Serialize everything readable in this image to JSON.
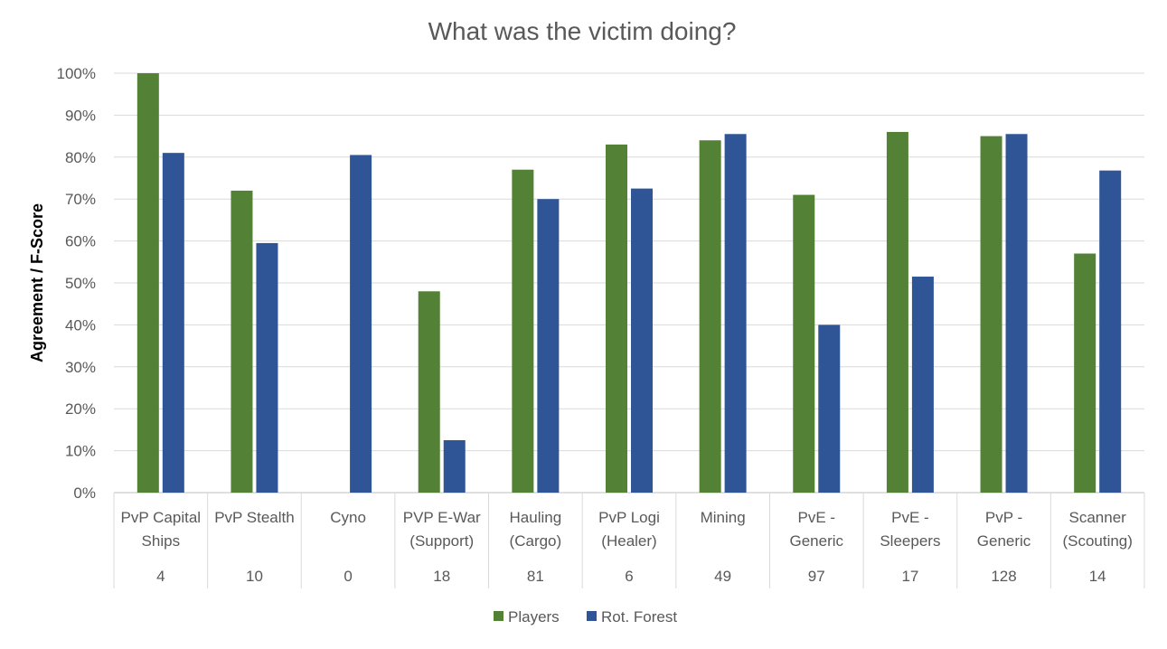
{
  "chart_data": {
    "type": "bar",
    "title": "What was the victim doing?",
    "xlabel": "",
    "ylabel": "Agreement / F-Score",
    "ylim": [
      0,
      1
    ],
    "y_tick_labels": [
      "0%",
      "10%",
      "20%",
      "30%",
      "40%",
      "50%",
      "60%",
      "70%",
      "80%",
      "90%",
      "100%"
    ],
    "grid": true,
    "legend_position": "bottom",
    "categories": [
      [
        "PvP Capital",
        "Ships"
      ],
      [
        "PvP Stealth"
      ],
      [
        "Cyno"
      ],
      [
        "PVP E-War",
        "(Support)"
      ],
      [
        "Hauling",
        "(Cargo)"
      ],
      [
        "PvP Logi",
        "(Healer)"
      ],
      [
        "Mining"
      ],
      [
        "PvE -",
        "Generic"
      ],
      [
        "PvE -",
        "Sleepers"
      ],
      [
        "PvP -",
        "Generic"
      ],
      [
        "Scanner",
        "(Scouting)"
      ]
    ],
    "category_counts": [
      "4",
      "10",
      "0",
      "18",
      "81",
      "6",
      "49",
      "97",
      "17",
      "128",
      "14"
    ],
    "series": [
      {
        "name": "Players",
        "color": "#538135",
        "values": [
          1.0,
          0.72,
          0.0,
          0.48,
          0.77,
          0.83,
          0.84,
          0.71,
          0.86,
          0.85,
          0.57
        ]
      },
      {
        "name": "Rot. Forest",
        "color": "#2f5597",
        "values": [
          0.81,
          0.595,
          0.805,
          0.125,
          0.7,
          0.725,
          0.855,
          0.4,
          0.515,
          0.855,
          0.768
        ]
      }
    ]
  }
}
